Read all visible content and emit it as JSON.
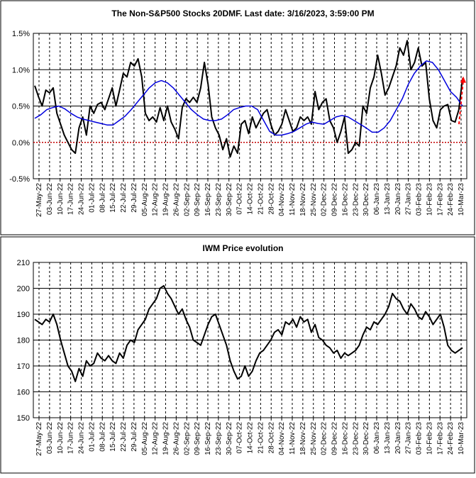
{
  "chart_data": [
    {
      "type": "line",
      "title": "The Non-S&P500 Stocks 20DMF. Last date: 3/16/2023, 3:59:00 PM",
      "y_ticks": [
        "1.5%",
        "1.0%",
        "0.5%",
        "0.0%",
        "-0.5%"
      ],
      "y_tick_values": [
        1.5,
        1.0,
        0.5,
        0.0,
        -0.5
      ],
      "ylim": [
        -0.5,
        1.5
      ],
      "x_tick_labels": [
        "27-May-22",
        "03-Jun-22",
        "10-Jun-22",
        "17-Jun-22",
        "24-Jun-22",
        "01-Jul-22",
        "08-Jul-22",
        "15-Jul-22",
        "22-Jul-22",
        "29-Jul-22",
        "05-Aug-22",
        "12-Aug-22",
        "19-Aug-22",
        "26-Aug-22",
        "02-Sep-22",
        "09-Sep-22",
        "16-Sep-22",
        "23-Sep-22",
        "30-Sep-22",
        "07-Oct-22",
        "14-Oct-22",
        "21-Oct-22",
        "28-Oct-22",
        "04-Nov-22",
        "11-Nov-22",
        "18-Nov-22",
        "25-Nov-22",
        "02-Dec-22",
        "09-Dec-22",
        "16-Dec-22",
        "23-Dec-22",
        "30-Dec-22",
        "06-Jan-23",
        "13-Jan-23",
        "20-Jan-23",
        "27-Jan-23",
        "03-Feb-23",
        "10-Feb-23",
        "17-Feb-23",
        "24-Feb-23",
        "10-Mar-23"
      ],
      "grid": "horizontal solid at ticks, vertical dashed per week",
      "zero_line_color": "#c00000",
      "series": [
        {
          "color": "#000000",
          "values": [
            0.78,
            0.63,
            0.5,
            0.72,
            0.68,
            0.75,
            0.4,
            0.25,
            0.1,
            0.0,
            -0.1,
            -0.15,
            0.2,
            0.35,
            0.1,
            0.5,
            0.4,
            0.52,
            0.55,
            0.45,
            0.6,
            0.75,
            0.5,
            0.72,
            0.95,
            0.9,
            1.1,
            1.05,
            1.15,
            0.9,
            0.4,
            0.3,
            0.35,
            0.28,
            0.48,
            0.3,
            0.5,
            0.28,
            0.18,
            0.05,
            0.48,
            0.6,
            0.55,
            0.62,
            0.55,
            0.75,
            1.1,
            0.8,
            0.35,
            0.2,
            0.1,
            -0.1,
            0.05,
            -0.2,
            -0.05,
            -0.15,
            0.25,
            0.3,
            0.12,
            0.35,
            0.2,
            0.3,
            0.4,
            0.45,
            0.25,
            0.1,
            0.15,
            0.25,
            0.45,
            0.3,
            0.15,
            0.2,
            0.35,
            0.3,
            0.35,
            0.25,
            0.7,
            0.45,
            0.55,
            0.6,
            0.3,
            0.2,
            0.0,
            0.15,
            0.35,
            -0.15,
            -0.1,
            0.0,
            -0.05,
            0.5,
            0.4,
            0.75,
            0.9,
            1.2,
            0.95,
            0.65,
            0.75,
            0.9,
            1.05,
            1.3,
            1.2,
            1.4,
            1.0,
            1.1,
            1.3,
            1.05,
            1.1,
            0.6,
            0.3,
            0.2,
            0.45,
            0.5,
            0.52,
            0.3,
            0.28,
            0.45,
            0.88
          ],
          "name": ""
        },
        {
          "color": "#0000dd",
          "values": [
            0.33,
            0.38,
            0.45,
            0.48,
            0.5,
            0.46,
            0.4,
            0.35,
            0.32,
            0.3,
            0.28,
            0.26,
            0.24,
            0.24,
            0.3,
            0.36,
            0.45,
            0.55,
            0.65,
            0.75,
            0.82,
            0.85,
            0.82,
            0.75,
            0.65,
            0.55,
            0.45,
            0.38,
            0.32,
            0.3,
            0.3,
            0.32,
            0.38,
            0.45,
            0.48,
            0.5,
            0.5,
            0.45,
            0.3,
            0.15,
            0.1,
            0.1,
            0.12,
            0.15,
            0.2,
            0.25,
            0.28,
            0.26,
            0.25,
            0.3,
            0.35,
            0.37,
            0.35,
            0.3,
            0.25,
            0.2,
            0.14,
            0.14,
            0.2,
            0.3,
            0.45,
            0.6,
            0.8,
            0.95,
            1.05,
            1.12,
            1.1,
            1.0,
            0.85,
            0.7,
            0.62,
            0.5
          ],
          "name": ""
        }
      ],
      "annotation": "red dashed arrow pointing up at last date"
    },
    {
      "type": "line",
      "title": "IWM Price evolution",
      "y_ticks": [
        "210",
        "200",
        "190",
        "180",
        "170",
        "160",
        "150"
      ],
      "y_tick_values": [
        210,
        200,
        190,
        180,
        170,
        160,
        150
      ],
      "ylim": [
        150,
        210
      ],
      "x_tick_labels": [
        "27-May-22",
        "03-Jun-22",
        "10-Jun-22",
        "17-Jun-22",
        "24-Jun-22",
        "01-Jul-22",
        "08-Jul-22",
        "15-Jul-22",
        "22-Jul-22",
        "29-Jul-22",
        "05-Aug-22",
        "12-Aug-22",
        "19-Aug-22",
        "26-Aug-22",
        "02-Sep-22",
        "09-Sep-22",
        "16-Sep-22",
        "23-Sep-22",
        "30-Sep-22",
        "07-Oct-22",
        "14-Oct-22",
        "21-Oct-22",
        "28-Oct-22",
        "04-Nov-22",
        "11-Nov-22",
        "18-Nov-22",
        "25-Nov-22",
        "02-Dec-22",
        "09-Dec-22",
        "16-Dec-22",
        "23-Dec-22",
        "30-Dec-22",
        "06-Jan-23",
        "13-Jan-23",
        "20-Jan-23",
        "27-Jan-23",
        "03-Feb-23",
        "10-Feb-23",
        "17-Feb-23",
        "24-Feb-23",
        "10-Mar-23"
      ],
      "grid": "horizontal solid at ticks, vertical dashed per week",
      "series": [
        {
          "color": "#000000",
          "values": [
            188,
            187,
            186,
            188,
            187,
            190,
            186,
            180,
            175,
            170,
            168,
            164,
            169,
            166,
            172,
            170,
            171,
            175,
            173,
            172,
            174,
            172,
            171,
            175,
            173,
            178,
            180,
            179,
            184,
            186,
            188,
            192,
            194,
            196,
            200,
            201,
            198,
            196,
            193,
            190,
            192,
            188,
            185,
            180,
            179,
            178,
            182,
            186,
            189,
            190,
            186,
            182,
            178,
            172,
            168,
            165,
            166,
            170,
            166,
            168,
            172,
            175,
            176,
            178,
            180,
            183,
            184,
            182,
            187,
            186,
            188,
            185,
            189,
            187,
            188,
            183,
            186,
            181,
            180,
            178,
            177,
            175,
            176,
            173,
            175,
            174,
            175,
            176,
            178,
            182,
            185,
            184,
            187,
            186,
            188,
            190,
            193,
            198,
            196,
            195,
            192,
            190,
            194,
            192,
            189,
            188,
            191,
            189,
            186,
            188,
            190,
            185,
            178,
            176,
            175,
            176,
            177
          ],
          "name": ""
        }
      ]
    }
  ]
}
